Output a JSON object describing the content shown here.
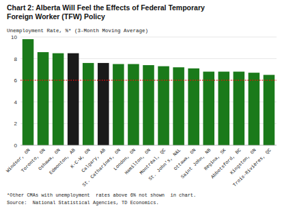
{
  "chart_data": {
    "type": "bar",
    "title": [
      "Chart 2: Alberta Will Feel the Effects of Federal Temporary",
      "Foreign Worker (TFW) Policy"
    ],
    "ylabel": "Unemployment Rate, %* (3-Month Moving Average)",
    "categories": [
      "Windsor, ON",
      "Toronto, ON",
      "Oshawa, ON",
      "Edmonton, AB",
      "K-C-W, ON",
      "Calgary, AB",
      "St. Catharines, ON",
      "London, ON",
      "Hamilton, ON",
      "Montréal, QC",
      "St. John's, N&L",
      "Ottawa, ON",
      "Saint John, NB",
      "Regina, SK",
      "Abbotsford, BC",
      "Kingston, ON",
      "Trois-Rivières, QC"
    ],
    "values": [
      9.8,
      8.6,
      8.5,
      8.5,
      7.6,
      7.6,
      7.5,
      7.5,
      7.4,
      7.3,
      7.2,
      7.1,
      6.8,
      6.8,
      6.8,
      6.7,
      6.5
    ],
    "colors": [
      "#1a7a1a",
      "#1a7a1a",
      "#1a7a1a",
      "#1a1a1a",
      "#1a7a1a",
      "#1a1a1a",
      "#1a7a1a",
      "#1a7a1a",
      "#1a7a1a",
      "#1a7a1a",
      "#1a7a1a",
      "#1a7a1a",
      "#1a7a1a",
      "#1a7a1a",
      "#1a7a1a",
      "#1a7a1a",
      "#1a7a1a"
    ],
    "threshold": 6.0,
    "threshold_color": "#ff0000",
    "ylim": [
      0,
      10
    ],
    "yticks": [
      0,
      2,
      4,
      6,
      8,
      10
    ],
    "grid": true,
    "annotations": [
      "*Other CMAs with unemployment  rates above 6% not shown  in chart.",
      "Source:  National Statistical Agencies, TD Economics."
    ]
  }
}
